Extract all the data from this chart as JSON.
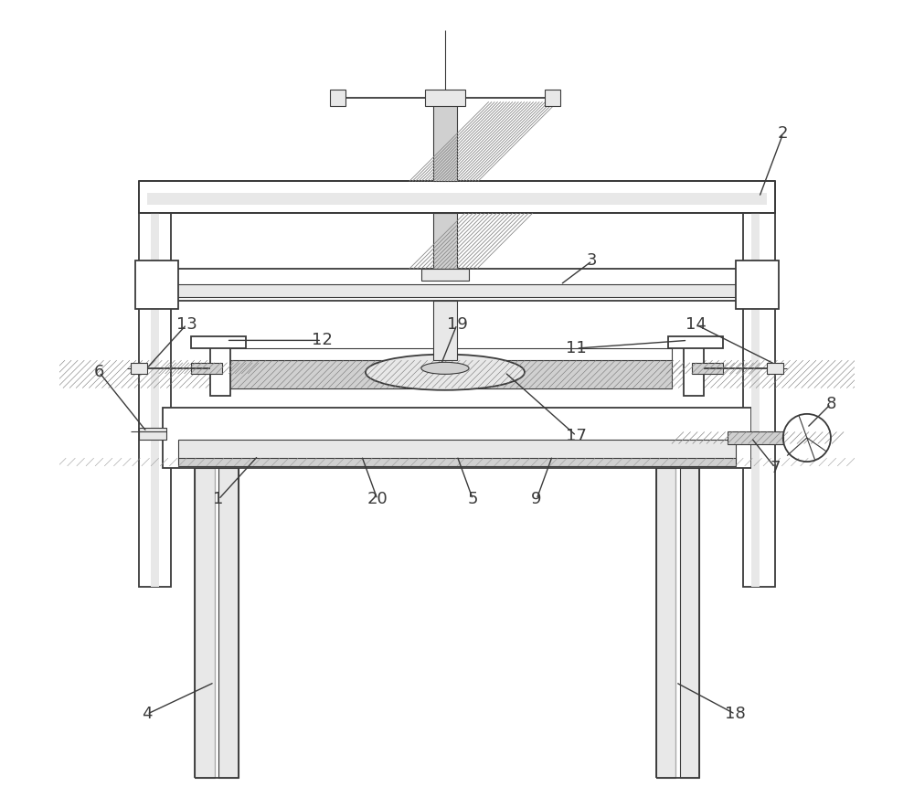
{
  "bg_color": "#ffffff",
  "lc": "#3a3a3a",
  "fig_w": 10.0,
  "fig_h": 8.84,
  "lw": 1.3,
  "lw_thin": 0.8
}
